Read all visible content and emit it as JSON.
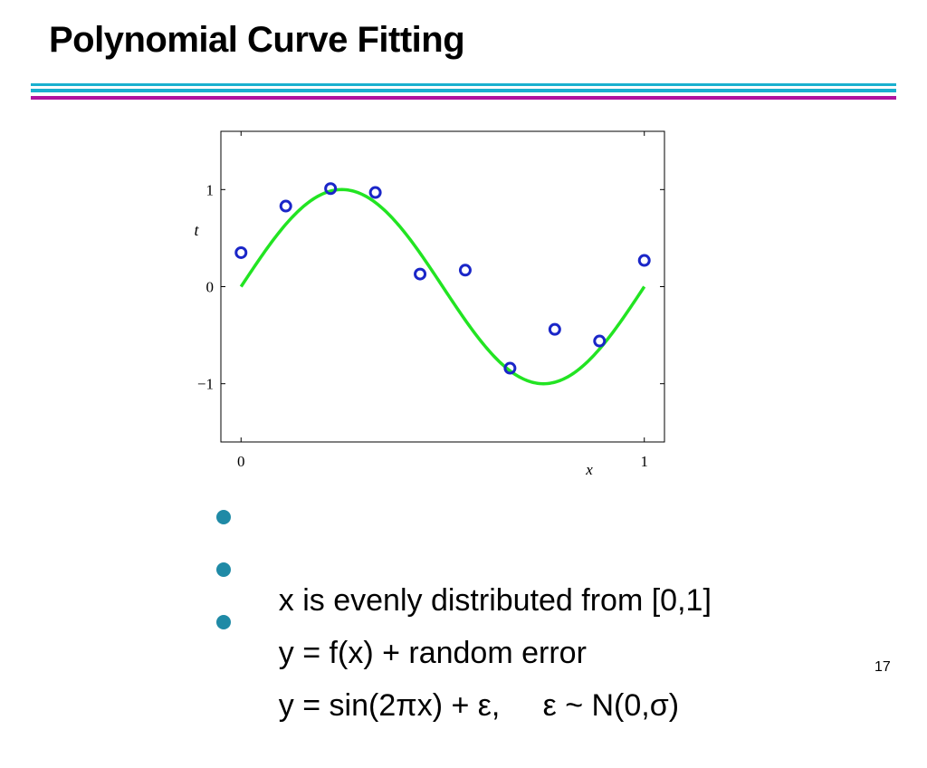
{
  "slide": {
    "title": "Polynomial Curve Fitting",
    "page_number": "17",
    "colors": {
      "rule_cyan": "#1ab0cf",
      "rule_magenta": "#b0139f",
      "bullet": "#1f8aa6",
      "curve": "#22e422",
      "points": "#1a26c8"
    }
  },
  "bullets": [
    {
      "text": "x is evenly distributed from [0,1]"
    },
    {
      "text": "y = f(x) + random error"
    },
    {
      "text": "y = sin(2πx) + ε,     ε ~ N(0,σ)"
    }
  ],
  "chart_data": {
    "type": "scatter",
    "xlabel": "x",
    "ylabel": "t",
    "xlim": [
      -0.05,
      1.05
    ],
    "ylim": [
      -1.6,
      1.6
    ],
    "xticks": [
      0,
      1
    ],
    "xtick_labels": [
      "0",
      "1"
    ],
    "yticks": [
      -1,
      0,
      1
    ],
    "ytick_labels": [
      "−1",
      "0",
      "1"
    ],
    "grid": false,
    "series": [
      {
        "type": "scatter",
        "marker": "open-circle",
        "color": "#1a26c8",
        "x": [
          0,
          0.111,
          0.222,
          0.333,
          0.444,
          0.556,
          0.667,
          0.778,
          0.889,
          1.0
        ],
        "y": [
          0.35,
          0.83,
          1.01,
          0.97,
          0.13,
          0.17,
          -0.84,
          -0.44,
          -0.56,
          0.27
        ]
      },
      {
        "type": "line",
        "function": "sin(2πx)",
        "color": "#22e422",
        "x_range": [
          0,
          1
        ]
      }
    ]
  }
}
